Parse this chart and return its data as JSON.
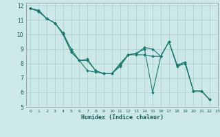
{
  "xlabel": "Humidex (Indice chaleur)",
  "xlim": [
    -0.5,
    23
  ],
  "ylim": [
    5,
    12.2
  ],
  "xticks": [
    0,
    1,
    2,
    3,
    4,
    5,
    6,
    7,
    8,
    9,
    10,
    11,
    12,
    13,
    14,
    15,
    16,
    17,
    18,
    19,
    20,
    21,
    22,
    23
  ],
  "yticks": [
    5,
    6,
    7,
    8,
    9,
    10,
    11,
    12
  ],
  "bg_color": "#cce8e8",
  "line_color": "#1a7a6e",
  "grid_color": "#aacccc",
  "series1": {
    "x": [
      0,
      1,
      2,
      3,
      4,
      5,
      6,
      7,
      8,
      9,
      10,
      11,
      12,
      13,
      14,
      15,
      16,
      17,
      18,
      19,
      20,
      21,
      22
    ],
    "y": [
      11.8,
      11.6,
      11.1,
      10.8,
      10.0,
      8.8,
      8.2,
      8.2,
      7.5,
      7.3,
      7.3,
      7.9,
      8.6,
      8.7,
      9.0,
      6.0,
      8.5,
      9.5,
      7.8,
      8.0,
      6.1,
      6.1,
      5.5
    ]
  },
  "series2": {
    "x": [
      0,
      1,
      2,
      3,
      4,
      5,
      6,
      7,
      8,
      9,
      10,
      11,
      12,
      13,
      14,
      15,
      16,
      17,
      18,
      19,
      20,
      21,
      22
    ],
    "y": [
      11.8,
      11.6,
      11.1,
      10.8,
      10.1,
      9.0,
      8.2,
      8.3,
      7.5,
      7.3,
      7.3,
      7.8,
      8.6,
      8.7,
      9.1,
      9.0,
      8.5,
      9.5,
      7.9,
      8.0,
      6.1,
      6.1,
      5.5
    ]
  },
  "series3": {
    "x": [
      0,
      1,
      2,
      3,
      4,
      5,
      6,
      7,
      8,
      9,
      10,
      11,
      12,
      13,
      14,
      15,
      16,
      17,
      18,
      19,
      20,
      21,
      22
    ],
    "y": [
      11.8,
      11.7,
      11.1,
      10.8,
      10.1,
      8.8,
      8.2,
      7.5,
      7.4,
      7.3,
      7.3,
      8.0,
      8.6,
      8.6,
      8.6,
      8.5,
      8.5,
      9.5,
      7.9,
      8.1,
      6.1,
      6.1,
      5.5
    ]
  },
  "series4": {
    "x": [
      0,
      1,
      2,
      3
    ],
    "y": [
      11.8,
      11.6,
      11.1,
      10.8
    ]
  }
}
